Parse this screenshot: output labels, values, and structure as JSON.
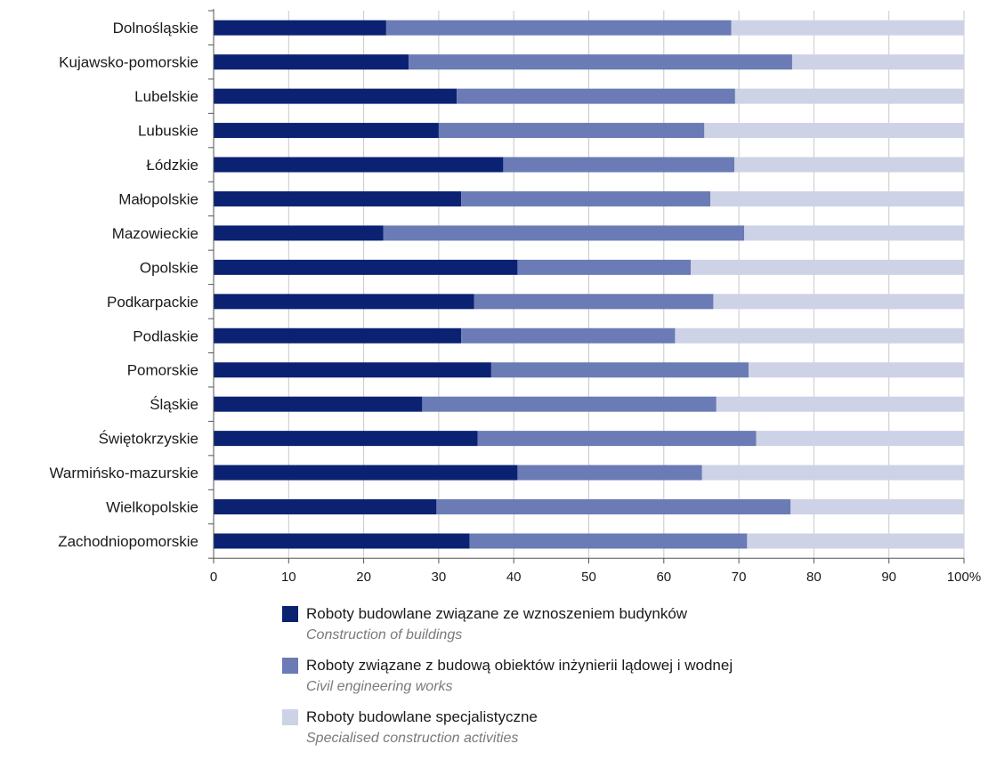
{
  "chart_data": {
    "type": "bar",
    "orientation": "horizontal",
    "stacked": true,
    "categories": [
      "Dolnośląskie",
      "Kujawsko-pomorskie",
      "Lubelskie",
      "Lubuskie",
      "Łódzkie",
      "Małopolskie",
      "Mazowieckie",
      "Opolskie",
      "Podkarpackie",
      "Podlaskie",
      "Pomorskie",
      "Śląskie",
      "Świętokrzyskie",
      "Warmińsko-mazurskie",
      "Wielkopolskie",
      "Zachodniopomorskie"
    ],
    "series": [
      {
        "name": "Roboty budowlane związane ze wznoszeniem budynków",
        "name_en": "Construction of buildings",
        "color": "#0b2273",
        "values": [
          23,
          26,
          32.4,
          30,
          38.6,
          33,
          22.6,
          40.5,
          34.7,
          33,
          37,
          27.8,
          35.2,
          40.5,
          29.7,
          34.1
        ]
      },
      {
        "name": "Roboty związane z budową obiektów inżynierii lądowej i wodnej",
        "name_en": "Civil engineering works",
        "color": "#6a7bb5",
        "values": [
          46,
          51.1,
          37.1,
          35.4,
          30.8,
          33.2,
          48.1,
          23.1,
          31.9,
          28.5,
          34.3,
          39.2,
          37.1,
          24.6,
          47.2,
          37
        ]
      },
      {
        "name": "Roboty budowlane specjalistyczne",
        "name_en": "Specialised construction activities",
        "color": "#cdd2e6",
        "values": [
          31,
          22.9,
          30.5,
          34.6,
          30.6,
          33.8,
          29.3,
          36.4,
          33.4,
          38.5,
          28.7,
          33,
          27.7,
          34.9,
          23.1,
          28.9
        ]
      }
    ],
    "x_ticks": [
      "0",
      "10",
      "20",
      "30",
      "40",
      "50",
      "60",
      "70",
      "80",
      "90",
      "100%"
    ],
    "xlim": [
      0,
      100
    ],
    "grid": true,
    "legend_position": "bottom"
  }
}
